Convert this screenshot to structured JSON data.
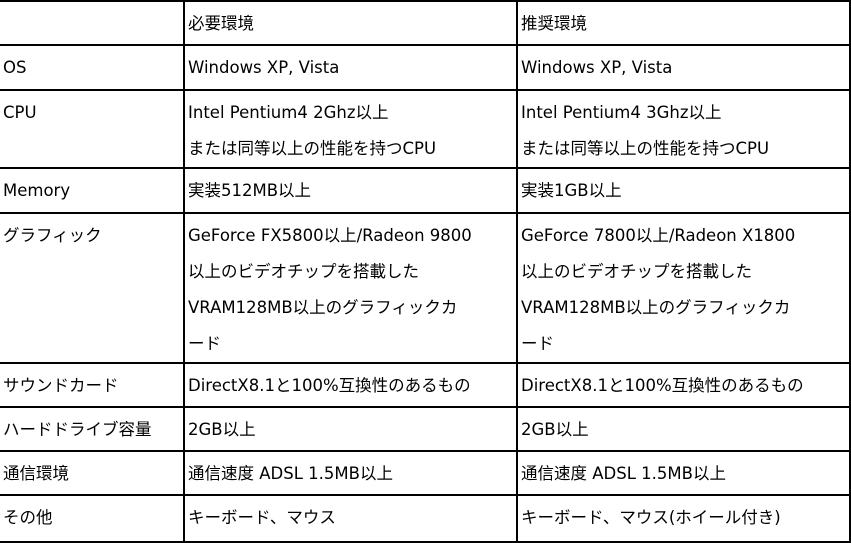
{
  "table": {
    "headers": [
      "",
      "必要環境",
      "推奨環境"
    ],
    "rows": [
      {
        "label": "OS",
        "required": [
          "Windows XP, Vista"
        ],
        "recommended": [
          "Windows XP, Vista"
        ]
      },
      {
        "label": "CPU",
        "required": [
          "Intel Pentium4 2Ghz以上",
          "または同等以上の性能を持つCPU"
        ],
        "recommended": [
          "Intel Pentium4 3Ghz以上",
          "または同等以上の性能を持つCPU"
        ]
      },
      {
        "label": "Memory",
        "required": [
          "実装512MB以上"
        ],
        "recommended": [
          "実装1GB以上"
        ]
      },
      {
        "label": "グラフィック",
        "required": [
          "GeForce FX5800以上/Radeon 9800",
          "以上のビデオチップを搭載した",
          "VRAM128MB以上のグラフィックカ",
          "ード"
        ],
        "recommended": [
          "GeForce 7800以上/Radeon X1800",
          "以上のビデオチップを搭載した",
          "VRAM128MB以上のグラフィックカ",
          "ード"
        ]
      },
      {
        "label": "サウンドカード",
        "required": [
          "DirectX8.1と100%互換性のあるもの"
        ],
        "recommended": [
          "DirectX8.1と100%互換性のあるもの"
        ]
      },
      {
        "label": "ハードドライブ容量",
        "required": [
          "2GB以上"
        ],
        "recommended": [
          "2GB以上"
        ]
      },
      {
        "label": "通信環境",
        "required": [
          "通信速度 ADSL 1.5MB以上"
        ],
        "recommended": [
          "通信速度 ADSL 1.5MB以上"
        ]
      },
      {
        "label": "その他",
        "required": [
          "キーボード、マウス"
        ],
        "recommended": [
          "キーボード、マウス(ホイール付き)"
        ]
      }
    ]
  }
}
